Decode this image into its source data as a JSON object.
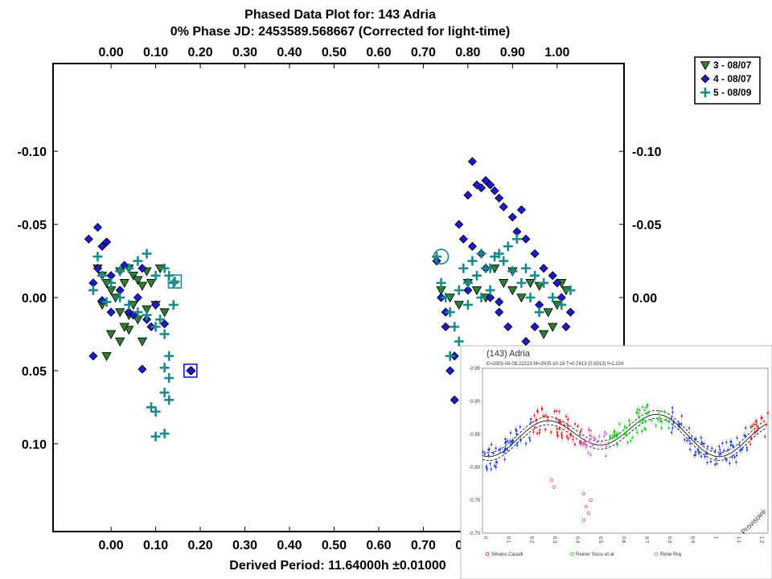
{
  "chart_data": {
    "type": "scatter",
    "title": "Phased Data Plot for: 143 Adria",
    "subtitle": "0% Phase JD:  2453589.568667   (Corrected for light-time)",
    "xlabel": "Derived Period: 11.64000h  ±0.01000",
    "ylabel": "",
    "xlim": [
      -0.13,
      1.15
    ],
    "ylim": [
      0.16,
      -0.16
    ],
    "y_inverted": true,
    "x_ticks": [
      "0.00",
      "0.10",
      "0.20",
      "0.30",
      "0.40",
      "0.50",
      "0.60",
      "0.70",
      "0.80",
      "0.90",
      "1.00"
    ],
    "x_tick_values": [
      0,
      0.1,
      0.2,
      0.3,
      0.4,
      0.5,
      0.6,
      0.7,
      0.8,
      0.9,
      1.0
    ],
    "y_ticks": [
      "-0.10",
      "-0.05",
      "0.00",
      "0.05",
      "0.10"
    ],
    "y_tick_values": [
      -0.1,
      -0.05,
      0.0,
      0.05,
      0.1
    ],
    "legend_placement": "top-right",
    "series": [
      {
        "name": "3 - 08/07",
        "marker": "triangle-down",
        "color": "#2e7d32",
        "points": [
          [
            -0.03,
            -0.02
          ],
          [
            -0.02,
            -0.015
          ],
          [
            -0.01,
            -0.01
          ],
          [
            0.0,
            -0.005
          ],
          [
            0.01,
            0.0
          ],
          [
            0.02,
            -0.018
          ],
          [
            0.03,
            -0.01
          ],
          [
            0.04,
            -0.02
          ],
          [
            0.05,
            -0.015
          ],
          [
            0.06,
            -0.012
          ],
          [
            0.07,
            -0.008
          ],
          [
            0.08,
            -0.018
          ],
          [
            0.09,
            -0.01
          ],
          [
            0.02,
            0.01
          ],
          [
            0.04,
            0.012
          ],
          [
            0.06,
            0.015
          ],
          [
            0.08,
            0.008
          ],
          [
            0.1,
            0.005
          ],
          [
            0.12,
            0.01
          ],
          [
            0.0,
            0.025
          ],
          [
            0.02,
            0.03
          ],
          [
            0.04,
            0.022
          ],
          [
            0.07,
            0.03
          ],
          [
            -0.01,
            0.04
          ],
          [
            0.03,
            0.02
          ],
          [
            0.05,
            0.005
          ],
          [
            0.11,
            -0.02
          ],
          [
            -0.02,
            0.005
          ],
          [
            0.74,
            -0.005
          ],
          [
            0.76,
            0.0
          ],
          [
            0.78,
            0.005
          ],
          [
            0.8,
            -0.01
          ],
          [
            0.82,
            -0.005
          ],
          [
            0.84,
            0.0
          ],
          [
            0.86,
            -0.02
          ],
          [
            0.88,
            -0.01
          ],
          [
            0.9,
            -0.005
          ],
          [
            0.92,
            0.0
          ],
          [
            0.94,
            -0.01
          ],
          [
            0.96,
            -0.008
          ],
          [
            0.98,
            0.01
          ],
          [
            1.0,
            0.005
          ],
          [
            1.02,
            -0.005
          ],
          [
            0.97,
            0.025
          ],
          [
            0.99,
            0.02
          ],
          [
            1.01,
            -0.01
          ],
          [
            0.9,
            -0.018
          ]
        ]
      },
      {
        "name": "4 - 08/07",
        "marker": "diamond",
        "color": "#1a1ad1",
        "points": [
          [
            -0.05,
            -0.04
          ],
          [
            -0.03,
            -0.048
          ],
          [
            -0.02,
            -0.035
          ],
          [
            -0.01,
            -0.038
          ],
          [
            -0.03,
            -0.02
          ],
          [
            -0.04,
            -0.01
          ],
          [
            0.0,
            -0.015
          ],
          [
            0.02,
            -0.005
          ],
          [
            0.04,
            0.01
          ],
          [
            0.06,
            0.0
          ],
          [
            0.08,
            0.015
          ],
          [
            0.1,
            0.005
          ],
          [
            0.03,
            -0.022
          ],
          [
            0.07,
            -0.02
          ],
          [
            -0.04,
            0.04
          ],
          [
            0.07,
            0.049
          ],
          [
            0.18,
            0.05
          ],
          [
            0.09,
            0.02
          ],
          [
            0.12,
            0.018
          ],
          [
            0.0,
            0.01
          ],
          [
            0.05,
            0.012
          ],
          [
            -0.02,
            0.002
          ],
          [
            0.73,
            -0.025
          ],
          [
            0.74,
            0.0
          ],
          [
            0.75,
            0.02
          ],
          [
            0.76,
            0.05
          ],
          [
            0.77,
            0.07
          ],
          [
            0.78,
            -0.05
          ],
          [
            0.8,
            -0.07
          ],
          [
            0.81,
            -0.093
          ],
          [
            0.82,
            -0.077
          ],
          [
            0.83,
            -0.075
          ],
          [
            0.84,
            -0.08
          ],
          [
            0.85,
            -0.077
          ],
          [
            0.86,
            -0.073
          ],
          [
            0.87,
            -0.068
          ],
          [
            0.88,
            -0.062
          ],
          [
            0.9,
            -0.055
          ],
          [
            0.92,
            -0.06
          ],
          [
            0.91,
            -0.045
          ],
          [
            0.93,
            -0.04
          ],
          [
            0.79,
            -0.04
          ],
          [
            0.81,
            -0.035
          ],
          [
            0.83,
            -0.03
          ],
          [
            0.95,
            -0.03
          ],
          [
            0.97,
            -0.02
          ],
          [
            0.99,
            -0.015
          ],
          [
            1.01,
            0.0
          ],
          [
            1.03,
            0.01
          ],
          [
            0.85,
            0.0
          ],
          [
            0.87,
            0.01
          ],
          [
            0.89,
            0.02
          ],
          [
            0.93,
            0.03
          ],
          [
            0.95,
            0.02
          ],
          [
            0.77,
            0.04
          ],
          [
            0.8,
            -0.005
          ],
          [
            1.0,
            -0.01
          ],
          [
            0.75,
            0.01
          ],
          [
            0.96,
            0.005
          ],
          [
            1.02,
            0.02
          ],
          [
            0.84,
            -0.02
          ],
          [
            0.87,
            0.003
          ]
        ]
      },
      {
        "name": "5 - 08/09",
        "marker": "plus",
        "color": "#1b8a8a",
        "points": [
          [
            -0.04,
            -0.005
          ],
          [
            -0.03,
            -0.028
          ],
          [
            -0.02,
            -0.015
          ],
          [
            0.0,
            -0.01
          ],
          [
            0.02,
            -0.018
          ],
          [
            0.04,
            -0.02
          ],
          [
            0.06,
            -0.025
          ],
          [
            0.08,
            -0.03
          ],
          [
            0.1,
            -0.015
          ],
          [
            0.12,
            -0.02
          ],
          [
            0.14,
            -0.01
          ],
          [
            0.02,
            0.0
          ],
          [
            0.04,
            0.005
          ],
          [
            0.06,
            0.01
          ],
          [
            0.08,
            0.012
          ],
          [
            0.1,
            0.02
          ],
          [
            0.11,
            0.015
          ],
          [
            0.12,
            0.025
          ],
          [
            0.13,
            0.04
          ],
          [
            0.12,
            0.048
          ],
          [
            0.13,
            0.055
          ],
          [
            0.12,
            0.065
          ],
          [
            0.13,
            0.07
          ],
          [
            0.1,
            0.078
          ],
          [
            0.12,
            0.093
          ],
          [
            0.1,
            0.095
          ],
          [
            0.09,
            0.075
          ],
          [
            0.14,
            0.005
          ],
          [
            0.13,
            -0.015
          ],
          [
            -0.01,
            0.003
          ],
          [
            0.73,
            -0.028
          ],
          [
            0.74,
            -0.01
          ],
          [
            0.75,
            0.0
          ],
          [
            0.76,
            0.01
          ],
          [
            0.77,
            0.02
          ],
          [
            0.78,
            0.03
          ],
          [
            0.76,
            0.04
          ],
          [
            0.79,
            -0.02
          ],
          [
            0.81,
            -0.025
          ],
          [
            0.83,
            -0.03
          ],
          [
            0.85,
            -0.02
          ],
          [
            0.87,
            -0.03
          ],
          [
            0.89,
            -0.035
          ],
          [
            0.91,
            -0.04
          ],
          [
            0.93,
            -0.02
          ],
          [
            0.95,
            -0.015
          ],
          [
            0.97,
            -0.01
          ],
          [
            0.99,
            0.0
          ],
          [
            1.01,
            0.005
          ],
          [
            1.03,
            -0.005
          ],
          [
            0.8,
            -0.01
          ],
          [
            0.82,
            -0.015
          ],
          [
            0.84,
            -0.02
          ],
          [
            0.86,
            -0.028
          ],
          [
            0.88,
            -0.025
          ],
          [
            0.9,
            -0.018
          ],
          [
            0.92,
            -0.01
          ],
          [
            0.94,
            0.0
          ],
          [
            0.96,
            0.01
          ],
          [
            0.83,
            0.0
          ],
          [
            0.85,
            -0.005
          ],
          [
            0.78,
            -0.005
          ],
          [
            0.8,
            0.005
          ]
        ]
      }
    ],
    "circled_points": [
      [
        0.74,
        -0.028
      ]
    ],
    "boxed_points": [
      {
        "x": 0.143,
        "y": -0.011,
        "color": "#1b8a8a"
      },
      {
        "x": 0.178,
        "y": 0.05,
        "color": "#1a1ad1"
      }
    ],
    "inset": {
      "title": "(143) Adria",
      "subtitle": "E=2005-08-08.22223    M=2005-10-16    T=0.7413 (0.0013)    f=1.224",
      "y_ticks": [
        "-0.95",
        "-0.90",
        "-0.85",
        "-0.80",
        "-0.75",
        "-0.70"
      ],
      "x_ticks": [
        "0",
        "0.1",
        "0.2",
        "0.3",
        "0.4",
        "0.5",
        "0.6",
        "0.7",
        "0.8",
        "0.9",
        "1",
        "1.1",
        "1.2"
      ],
      "watermark": "Provisoire",
      "legend": [
        "Silvano Casulli",
        "Reiner Stoss et al",
        "Rene Roy"
      ],
      "colors": [
        "#1f3fd6",
        "#e31a1a",
        "#19c819",
        "#d05fd0",
        "#ff9900"
      ]
    }
  }
}
